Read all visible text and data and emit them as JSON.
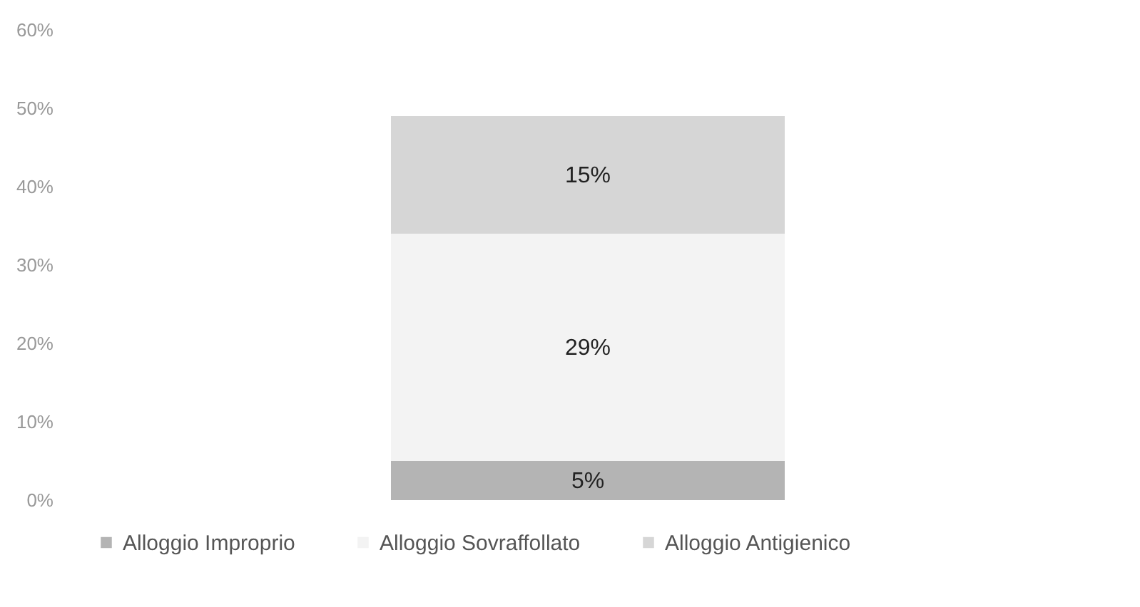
{
  "chart_data": {
    "type": "bar",
    "stacked": true,
    "categories": [
      null
    ],
    "series": [
      {
        "name": "Alloggio Improprio",
        "color": "#b4b4b4",
        "values": [
          5
        ]
      },
      {
        "name": "Alloggio Sovraffollato",
        "color": "#f3f3f3",
        "values": [
          29
        ]
      },
      {
        "name": "Alloggio Antigienico",
        "color": "#d6d6d6",
        "values": [
          15
        ]
      }
    ],
    "value_labels": [
      "5%",
      "29%",
      "15%"
    ],
    "ylim": [
      0,
      60
    ],
    "yticks": [
      {
        "value": 0,
        "label": "0%"
      },
      {
        "value": 10,
        "label": "10%"
      },
      {
        "value": 20,
        "label": "20%"
      },
      {
        "value": 30,
        "label": "30%"
      },
      {
        "value": 40,
        "label": "40%"
      },
      {
        "value": 50,
        "label": "50%"
      },
      {
        "value": 60,
        "label": "60%"
      }
    ],
    "grid": false,
    "legend": "bottom"
  }
}
